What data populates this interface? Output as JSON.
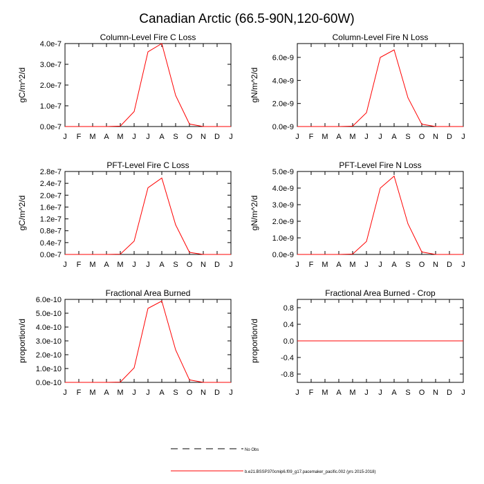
{
  "title": "Canadian Arctic (66.5-90N,120-60W)",
  "colors": {
    "series": "#ff0000",
    "axis": "#000000",
    "background": "#ffffff"
  },
  "chart_data": [
    {
      "type": "line",
      "title": "Column-Level Fire C Loss",
      "ylabel": "gC/m^2/d",
      "xlabel": "",
      "x": [
        "J",
        "F",
        "M",
        "A",
        "M",
        "J",
        "J",
        "A",
        "S",
        "O",
        "N",
        "D",
        "J"
      ],
      "ylim": [
        0,
        4e-07
      ],
      "yticks": [
        0,
        1e-07,
        2e-07,
        3e-07,
        4e-07
      ],
      "yticklabels": [
        "0.0e-7",
        "1.0e-7",
        "2.0e-7",
        "3.0e-7",
        "4.0e-7"
      ],
      "series": [
        {
          "name": "b.e21.BSSP370cmip6.f09_g17.pacemaker_pacific.002 (yrs 2015-2018)",
          "values": [
            0,
            0,
            0,
            0,
            2e-09,
            7.2e-08,
            3.6e-07,
            4e-07,
            1.5e-07,
            1.2e-08,
            0,
            0,
            0
          ]
        }
      ]
    },
    {
      "type": "line",
      "title": "Column-Level Fire N Loss",
      "ylabel": "gN/m^2/d",
      "xlabel": "",
      "x": [
        "J",
        "F",
        "M",
        "A",
        "M",
        "J",
        "J",
        "A",
        "S",
        "O",
        "N",
        "D",
        "J"
      ],
      "ylim": [
        0,
        7.2e-09
      ],
      "yticks": [
        0,
        2e-09,
        4e-09,
        6e-09
      ],
      "yticklabels": [
        "0.0e-9",
        "2.0e-9",
        "4.0e-9",
        "6.0e-9"
      ],
      "series": [
        {
          "name": "b.e21.BSSP370cmip6.f09_g17.pacemaker_pacific.002 (yrs 2015-2018)",
          "values": [
            0,
            0,
            0,
            0,
            3e-11,
            1.2e-09,
            6e-09,
            6.65e-09,
            2.5e-09,
            2e-10,
            0,
            0,
            0
          ]
        }
      ]
    },
    {
      "type": "line",
      "title": "PFT-Level Fire C Loss",
      "ylabel": "gC/m^2/d",
      "xlabel": "",
      "x": [
        "J",
        "F",
        "M",
        "A",
        "M",
        "J",
        "J",
        "A",
        "S",
        "O",
        "N",
        "D",
        "J"
      ],
      "ylim": [
        0,
        2.8e-07
      ],
      "yticks": [
        0,
        4e-08,
        8e-08,
        1.2e-07,
        1.6e-07,
        2e-07,
        2.4e-07,
        2.8e-07
      ],
      "yticklabels": [
        "0.0e-7",
        "0.4e-7",
        "0.8e-7",
        "1.2e-7",
        "1.6e-7",
        "2.0e-7",
        "2.4e-7",
        "2.8e-7"
      ],
      "series": [
        {
          "name": "b.e21.BSSP370cmip6.f09_g17.pacemaker_pacific.002 (yrs 2015-2018)",
          "values": [
            0,
            0,
            0,
            0,
            1e-09,
            4.5e-08,
            2.25e-07,
            2.58e-07,
            1e-07,
            7e-09,
            0,
            0,
            0
          ]
        }
      ]
    },
    {
      "type": "line",
      "title": "PFT-Level Fire N Loss",
      "ylabel": "gN/m^2/d",
      "xlabel": "",
      "x": [
        "J",
        "F",
        "M",
        "A",
        "M",
        "J",
        "J",
        "A",
        "S",
        "O",
        "N",
        "D",
        "J"
      ],
      "ylim": [
        0,
        5e-09
      ],
      "yticks": [
        0,
        1e-09,
        2e-09,
        3e-09,
        4e-09,
        5e-09
      ],
      "yticklabels": [
        "0.0e-9",
        "1.0e-9",
        "2.0e-9",
        "3.0e-9",
        "4.0e-9",
        "5.0e-9"
      ],
      "series": [
        {
          "name": "b.e21.BSSP370cmip6.f09_g17.pacemaker_pacific.002 (yrs 2015-2018)",
          "values": [
            0,
            0,
            0,
            0,
            2e-11,
            7.8e-10,
            4e-09,
            4.72e-09,
            1.85e-09,
            1.5e-10,
            0,
            0,
            0
          ]
        }
      ]
    },
    {
      "type": "line",
      "title": "Fractional Area Burned",
      "ylabel": "proportion/d",
      "xlabel": "",
      "x": [
        "J",
        "F",
        "M",
        "A",
        "M",
        "J",
        "J",
        "A",
        "S",
        "O",
        "N",
        "D",
        "J"
      ],
      "ylim": [
        0,
        6e-10
      ],
      "yticks": [
        0,
        1e-10,
        2e-10,
        3e-10,
        4e-10,
        5e-10,
        6e-10
      ],
      "yticklabels": [
        "0.0e-10",
        "1.0e-10",
        "2.0e-10",
        "3.0e-10",
        "4.0e-10",
        "5.0e-10",
        "6.0e-10"
      ],
      "series": [
        {
          "name": "b.e21.BSSP370cmip6.f09_g17.pacemaker_pacific.002 (yrs 2015-2018)",
          "values": [
            0,
            0,
            0,
            0,
            2e-12,
            1.05e-10,
            5.35e-10,
            5.88e-10,
            2.35e-10,
            1.8e-11,
            0,
            0,
            0
          ]
        }
      ]
    },
    {
      "type": "line",
      "title": "Fractional Area Burned - Crop",
      "ylabel": "proportion/d",
      "xlabel": "",
      "x": [
        "J",
        "F",
        "M",
        "A",
        "M",
        "J",
        "J",
        "A",
        "S",
        "O",
        "N",
        "D",
        "J"
      ],
      "ylim": [
        -1.0,
        1.0
      ],
      "yticks": [
        -0.8,
        -0.4,
        0.0,
        0.4,
        0.8
      ],
      "yticklabels": [
        "-0.8",
        "-0.4",
        "0.0",
        "0.4",
        "0.8"
      ],
      "series": [
        {
          "name": "b.e21.BSSP370cmip6.f09_g17.pacemaker_pacific.002 (yrs 2015-2018)",
          "values": [
            0,
            0,
            0,
            0,
            0,
            0,
            0,
            0,
            0,
            0,
            0,
            0,
            0
          ]
        }
      ]
    }
  ],
  "legend": {
    "placement": "bottom-center",
    "items": [
      {
        "label": "No Obs",
        "style": "dashed",
        "color": "#000000"
      },
      {
        "label": "b.e21.BSSP370cmip6.f09_g17.pacemaker_pacific.002 (yrs 2015-2018)",
        "style": "solid",
        "color": "#ff0000"
      }
    ]
  }
}
